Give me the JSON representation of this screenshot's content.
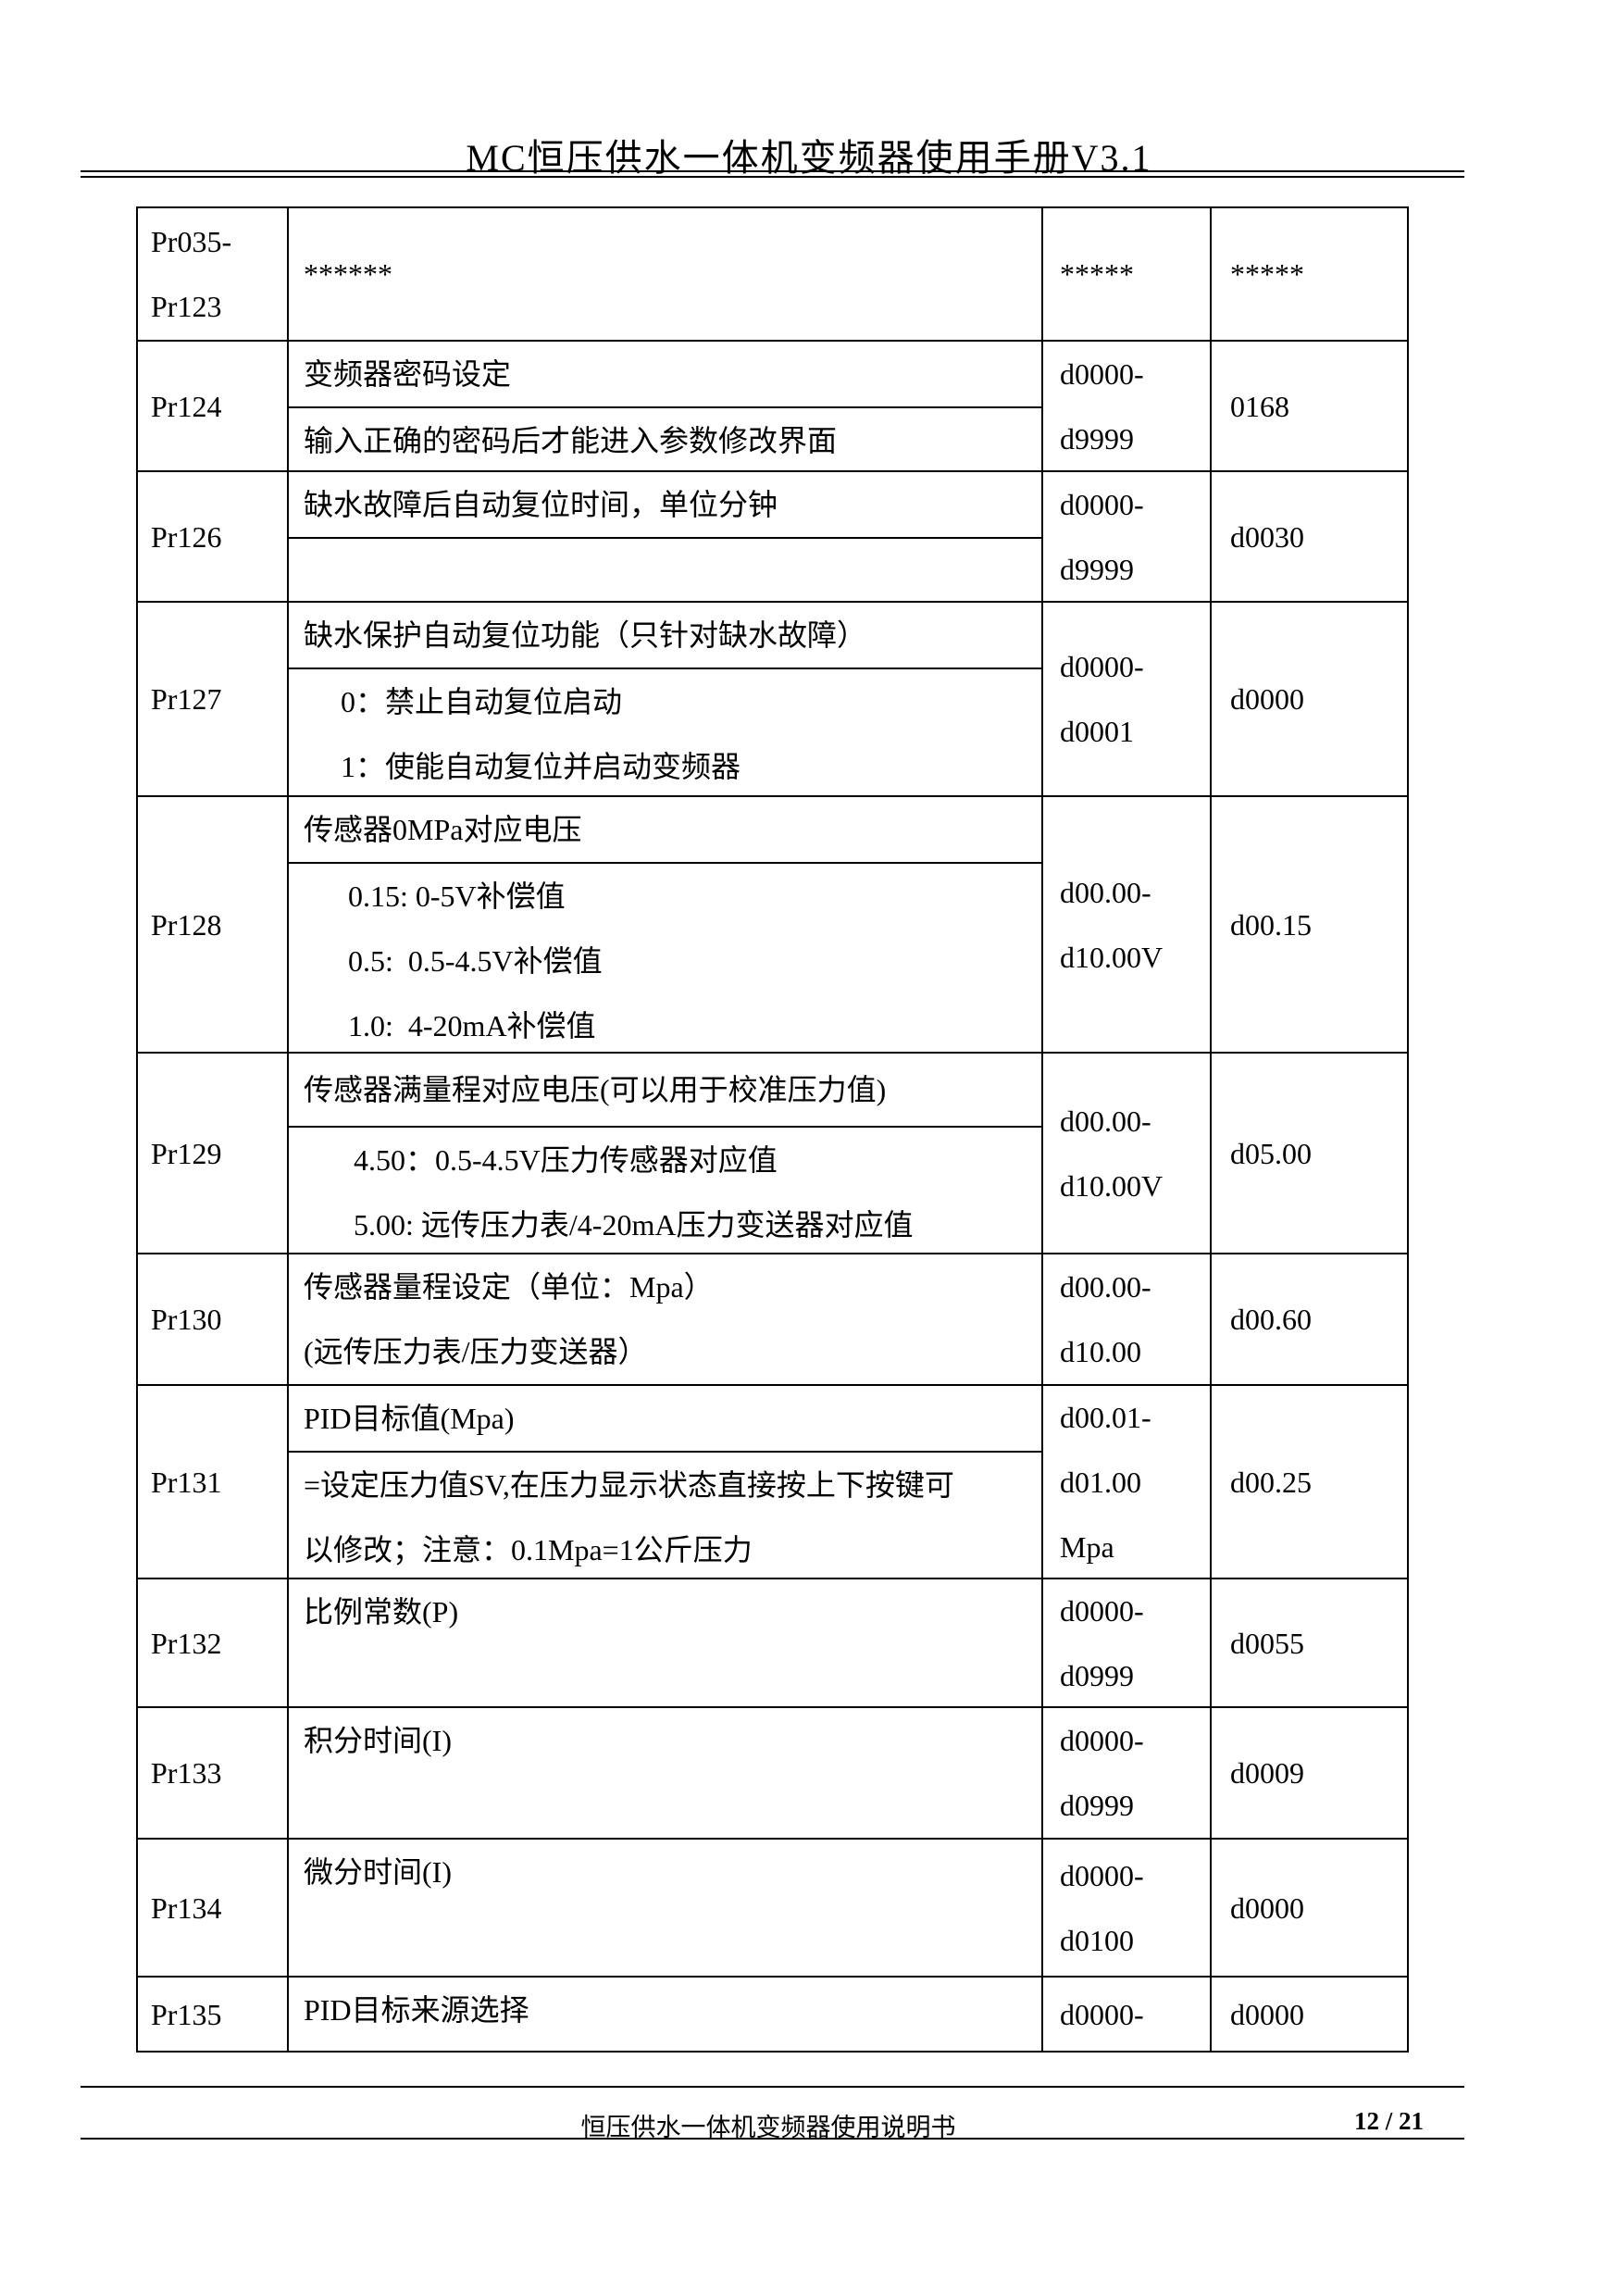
{
  "header": {
    "title": "MC恒压供水一体机变频器使用手册V3.1"
  },
  "table": {
    "rows": [
      {
        "param": [
          "Pr035-",
          "Pr123"
        ],
        "desc": [
          [
            "******"
          ]
        ],
        "range": [
          "*****"
        ],
        "default": "*****"
      },
      {
        "param": [
          "Pr124"
        ],
        "desc": [
          [
            "变频器密码设定"
          ],
          [
            "输入正确的密码后才能进入参数修改界面"
          ]
        ],
        "range": [
          "d0000-",
          "d9999"
        ],
        "default": "0168"
      },
      {
        "param": [
          "Pr126"
        ],
        "desc": [
          [
            "缺水故障后自动复位时间，单位分钟"
          ],
          []
        ],
        "range": [
          "d0000-",
          "d9999"
        ],
        "default": "d0030"
      },
      {
        "param": [
          "Pr127"
        ],
        "desc": [
          [
            "缺水保护自动复位功能（只针对缺水故障）"
          ],
          [
            "0：禁止自动复位启动",
            "1：使能自动复位并启动变频器"
          ]
        ],
        "range": [
          "d0000-",
          "d0001"
        ],
        "default": "d0000"
      },
      {
        "param": [
          "Pr128"
        ],
        "desc": [
          [
            "传感器0MPa对应电压"
          ],
          [
            "0.15: 0-5V补偿值",
            "0.5:  0.5-4.5V补偿值",
            "1.0:  4-20mA补偿值"
          ]
        ],
        "range": [
          "d00.00-",
          "d10.00V"
        ],
        "default": "d00.15"
      },
      {
        "param": [
          "Pr129"
        ],
        "desc": [
          [
            "传感器满量程对应电压(可以用于校准压力值)"
          ],
          [
            "4.50：0.5-4.5V压力传感器对应值",
            "5.00: 远传压力表/4-20mA压力变送器对应值"
          ]
        ],
        "range": [
          "d00.00-",
          "d10.00V"
        ],
        "default": "d05.00"
      },
      {
        "param": [
          "Pr130"
        ],
        "desc": [
          [
            "传感器量程设定（单位：Mpa）",
            "(远传压力表/压力变送器）"
          ]
        ],
        "range": [
          "d00.00-",
          "d10.00"
        ],
        "default": "d00.60"
      },
      {
        "param": [
          "Pr131"
        ],
        "desc": [
          [
            "PID目标值(Mpa)"
          ],
          [
            "=设定压力值SV,在压力显示状态直接按上下按键可",
            "以修改；注意：0.1Mpa=1公斤压力"
          ]
        ],
        "range": [
          "d00.01-",
          "d01.00",
          "Mpa"
        ],
        "default": "d00.25"
      },
      {
        "param": [
          "Pr132"
        ],
        "desc": [
          [
            "比例常数(P)"
          ]
        ],
        "range": [
          "d0000-",
          "d0999"
        ],
        "default": "d0055"
      },
      {
        "param": [
          "Pr133"
        ],
        "desc": [
          [
            "积分时间(I)"
          ]
        ],
        "range": [
          "d0000-",
          "d0999"
        ],
        "default": "d0009"
      },
      {
        "param": [
          "Pr134"
        ],
        "desc": [
          [
            "微分时间(I)"
          ]
        ],
        "range": [
          "d0000-",
          "d0100"
        ],
        "default": "d0000"
      },
      {
        "param": [
          "Pr135"
        ],
        "desc": [
          [
            "PID目标来源选择"
          ]
        ],
        "range": [
          "d0000-"
        ],
        "default": "d0000"
      }
    ]
  },
  "footer": {
    "text": "恒压供水一体机变频器使用说明书",
    "page": "12 / 21"
  }
}
